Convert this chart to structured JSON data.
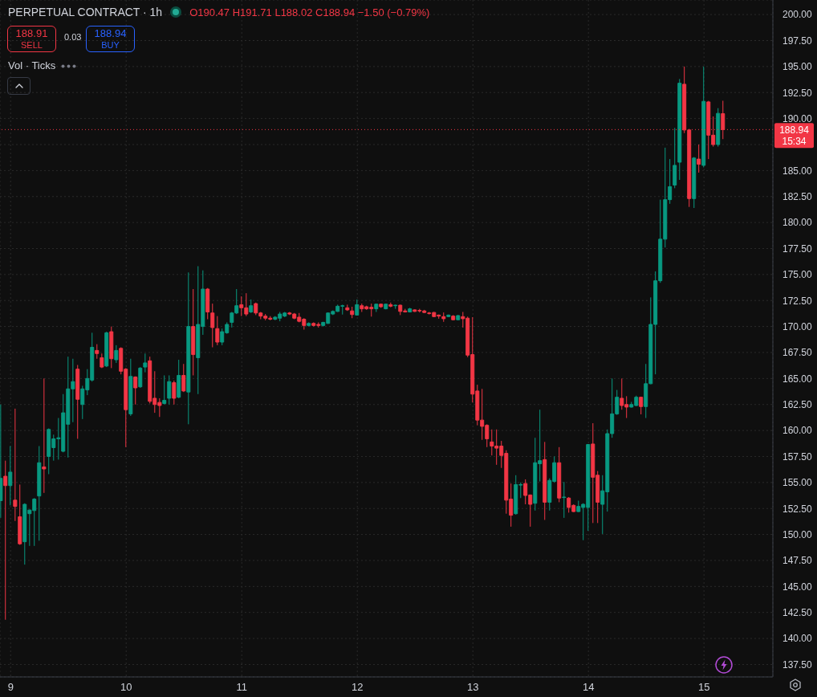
{
  "chart_data": {
    "type": "candlestick",
    "title": "PERPETUAL CONTRACT · 1h",
    "subtitle": "O190.47 H191.71 L188.02 C188.94 −1.50 (−0.79%)",
    "annotations": [
      "188.91",
      "SELL",
      "0.03",
      "188.94",
      "BUY",
      "Vol · Ticks",
      "15:34"
    ],
    "x": [
      8.917,
      8.958,
      9,
      9.042,
      9.083,
      9.125,
      9.167,
      9.208,
      9.25,
      9.292,
      9.333,
      9.375,
      9.417,
      9.458,
      9.5,
      9.542,
      9.583,
      9.625,
      9.667,
      9.708,
      9.75,
      9.792,
      9.833,
      9.875,
      9.917,
      9.958,
      10,
      10.042,
      10.083,
      10.125,
      10.167,
      10.208,
      10.25,
      10.292,
      10.333,
      10.375,
      10.417,
      10.458,
      10.5,
      10.542,
      10.583,
      10.625,
      10.667,
      10.708,
      10.75,
      10.792,
      10.833,
      10.875,
      10.917,
      10.958,
      11,
      11.042,
      11.083,
      11.125,
      11.167,
      11.208,
      11.25,
      11.292,
      11.333,
      11.375,
      11.417,
      11.458,
      11.5,
      11.542,
      11.583,
      11.625,
      11.667,
      11.708,
      11.75,
      11.792,
      11.833,
      11.875,
      11.917,
      11.958,
      12,
      12.042,
      12.083,
      12.125,
      12.167,
      12.208,
      12.25,
      12.292,
      12.333,
      12.375,
      12.417,
      12.458,
      12.5,
      12.542,
      12.583,
      12.625,
      12.667,
      12.708,
      12.75,
      12.792,
      12.833,
      12.875,
      12.917,
      12.958,
      13,
      13.042,
      13.083,
      13.125,
      13.167,
      13.208,
      13.25,
      13.292,
      13.333,
      13.375,
      13.417,
      13.458,
      13.5,
      13.542,
      13.583,
      13.625,
      13.667,
      13.708,
      13.75,
      13.792,
      13.833,
      13.875,
      13.917,
      13.958,
      14,
      14.042,
      14.083,
      14.125,
      14.167,
      14.208,
      14.25,
      14.292,
      14.333,
      14.375,
      14.417,
      14.458,
      14.5,
      14.542,
      14.583,
      14.625,
      14.667,
      14.708,
      14.75,
      14.792,
      14.833,
      14.875,
      14.917,
      14.958,
      15,
      15.042,
      15.083,
      15.125,
      15.167
    ],
    "xlim": [
      8.908,
      15.596
    ],
    "xticks": [
      9,
      10,
      11,
      12,
      13,
      14,
      15
    ],
    "ohlc": [
      [
        153.25,
        162.5,
        151.6,
        155.4
      ],
      [
        155.6,
        157.1,
        141.8,
        154.7
      ],
      [
        154.7,
        158.5,
        152.8,
        156.0
      ],
      [
        153.3,
        162.1,
        151.3,
        152.7
      ],
      [
        151.7,
        154.8,
        149.0,
        149.1
      ],
      [
        149.3,
        153.0,
        147.1,
        152.9
      ],
      [
        152.0,
        152.4,
        148.9,
        152.35
      ],
      [
        152.3,
        153.5,
        148.9,
        153.4
      ],
      [
        153.7,
        158.5,
        149.4,
        156.9
      ],
      [
        156.5,
        165.0,
        154.0,
        156.3
      ],
      [
        157.5,
        160.2,
        155.8,
        160.1
      ],
      [
        158.35,
        159.6,
        157.1,
        159.2
      ],
      [
        159.2,
        161.2,
        157.2,
        159.3
      ],
      [
        158.0,
        163.5,
        157.9,
        161.7
      ],
      [
        160.6,
        167.1,
        157.4,
        164.0
      ],
      [
        164.0,
        166.9,
        160.8,
        164.7
      ],
      [
        165.9,
        166.3,
        159.2,
        163.0
      ],
      [
        162.5,
        164.3,
        161.1,
        164.0
      ],
      [
        163.9,
        165.9,
        163.4,
        165.0
      ],
      [
        164.85,
        169.4,
        164.7,
        168.0
      ],
      [
        167.7,
        168.3,
        166.9,
        167.4
      ],
      [
        167.0,
        167.4,
        166.0,
        166.1
      ],
      [
        166.2,
        169.5,
        166.1,
        169.4
      ],
      [
        169.5,
        170.0,
        166.0,
        166.9
      ],
      [
        166.8,
        168.2,
        166.5,
        167.7
      ],
      [
        167.9,
        168.0,
        165.4,
        165.7
      ],
      [
        165.9,
        166.0,
        158.4,
        162.0
      ],
      [
        161.6,
        166.9,
        161.4,
        165.2
      ],
      [
        165.15,
        165.2,
        162.5,
        164.1
      ],
      [
        164.2,
        166.1,
        164.1,
        166.0
      ],
      [
        166.1,
        167.4,
        165.6,
        166.5
      ],
      [
        166.7,
        167.1,
        162.6,
        162.8
      ],
      [
        163.1,
        165.7,
        161.7,
        162.5
      ],
      [
        162.7,
        163.1,
        161.3,
        162.4
      ],
      [
        162.6,
        165.3,
        162.5,
        162.9
      ],
      [
        163.1,
        165.3,
        162.5,
        164.7
      ],
      [
        164.6,
        164.8,
        162.5,
        163.1
      ],
      [
        163.2,
        166.8,
        163.1,
        165.3
      ],
      [
        165.3,
        166.4,
        163.7,
        163.8
      ],
      [
        163.7,
        175.2,
        160.6,
        170.0
      ],
      [
        170.0,
        173.6,
        165.3,
        167.3
      ],
      [
        167.0,
        175.8,
        163.5,
        170.2
      ],
      [
        170.0,
        175.4,
        169.2,
        173.6
      ],
      [
        173.6,
        173.7,
        170.7,
        171.4
      ],
      [
        171.3,
        172.2,
        168.0,
        169.9
      ],
      [
        169.8,
        171.0,
        168.2,
        168.5
      ],
      [
        168.5,
        169.8,
        168.2,
        169.5
      ],
      [
        169.4,
        170.4,
        169.3,
        170.2
      ],
      [
        170.4,
        171.4,
        169.9,
        171.3
      ],
      [
        171.3,
        173.6,
        171.2,
        172.0
      ],
      [
        172.1,
        172.9,
        171.0,
        171.8
      ],
      [
        171.8,
        173.2,
        171.0,
        171.2
      ],
      [
        171.4,
        172.6,
        171.3,
        172.0
      ],
      [
        172.2,
        172.3,
        171.1,
        171.3
      ],
      [
        171.3,
        171.4,
        170.7,
        171.0
      ],
      [
        171.0,
        171.2,
        170.6,
        170.8
      ],
      [
        170.8,
        171.0,
        170.6,
        170.7
      ],
      [
        170.7,
        171.0,
        170.6,
        170.9
      ],
      [
        170.8,
        171.4,
        170.5,
        171.2
      ],
      [
        171.0,
        171.4,
        170.9,
        171.3
      ],
      [
        171.3,
        171.4,
        171.1,
        171.2
      ],
      [
        171.2,
        171.3,
        170.7,
        170.8
      ],
      [
        170.9,
        171.3,
        170.4,
        170.5
      ],
      [
        170.7,
        170.8,
        169.7,
        170.1
      ],
      [
        170.1,
        170.4,
        170.0,
        170.3
      ],
      [
        170.3,
        170.4,
        170.0,
        170.1
      ],
      [
        170.2,
        170.4,
        169.9,
        170.1
      ],
      [
        170.1,
        170.45,
        170.0,
        170.4
      ],
      [
        170.3,
        171.35,
        170.25,
        171.3
      ],
      [
        171.2,
        171.55,
        171.1,
        171.45
      ],
      [
        171.45,
        172.1,
        171.4,
        171.95
      ],
      [
        171.95,
        172.1,
        171.15,
        172.0
      ],
      [
        171.8,
        172.1,
        171.5,
        171.6
      ],
      [
        171.5,
        171.9,
        170.8,
        171.15
      ],
      [
        171.1,
        172.6,
        171.05,
        172.1
      ],
      [
        172.0,
        172.2,
        171.4,
        171.7
      ],
      [
        171.9,
        172.0,
        171.6,
        171.7
      ],
      [
        171.85,
        172.2,
        170.95,
        171.7
      ],
      [
        171.7,
        172.2,
        171.4,
        172.15
      ],
      [
        172.15,
        172.2,
        171.8,
        171.9
      ],
      [
        171.7,
        172.2,
        171.65,
        172.15
      ],
      [
        172.1,
        172.3,
        171.85,
        171.95
      ],
      [
        172.0,
        172.1,
        171.7,
        172.05
      ],
      [
        172.05,
        172.1,
        171.1,
        171.45
      ],
      [
        171.5,
        171.7,
        171.35,
        171.4
      ],
      [
        171.4,
        171.8,
        171.35,
        171.7
      ],
      [
        171.6,
        171.65,
        171.4,
        171.45
      ],
      [
        171.55,
        171.7,
        171.35,
        171.5
      ],
      [
        171.5,
        171.6,
        171.3,
        171.35
      ],
      [
        171.3,
        171.4,
        171.15,
        171.25
      ],
      [
        171.35,
        171.4,
        170.9,
        170.95
      ],
      [
        171.1,
        171.15,
        170.75,
        171.0
      ],
      [
        170.95,
        171.35,
        170.45,
        170.75
      ],
      [
        170.95,
        171.15,
        170.9,
        171.1
      ],
      [
        171.0,
        171.1,
        170.6,
        170.65
      ],
      [
        170.65,
        171.1,
        170.6,
        171.05
      ],
      [
        170.95,
        171.4,
        169.9,
        170.75
      ],
      [
        170.8,
        170.95,
        167.05,
        167.25
      ],
      [
        167.3,
        170.9,
        162.7,
        163.5
      ],
      [
        163.8,
        164.4,
        160.5,
        161.0
      ],
      [
        161.0,
        164.0,
        159.1,
        160.4
      ],
      [
        160.5,
        160.6,
        158.4,
        159.2
      ],
      [
        158.9,
        160.1,
        157.6,
        158.5
      ],
      [
        158.5,
        160.1,
        156.7,
        158.3
      ],
      [
        158.5,
        159.0,
        156.4,
        157.6
      ],
      [
        157.8,
        158.1,
        152.0,
        153.3
      ],
      [
        153.4,
        154.9,
        150.75,
        151.85
      ],
      [
        152.0,
        155.7,
        151.9,
        154.8
      ],
      [
        154.75,
        155.0,
        153.5,
        154.8
      ],
      [
        154.9,
        155.3,
        152.9,
        153.75
      ],
      [
        153.8,
        153.85,
        150.75,
        152.9
      ],
      [
        153.0,
        159.3,
        152.3,
        156.9
      ],
      [
        156.8,
        162.0,
        155.1,
        157.1
      ],
      [
        157.2,
        158.9,
        151.4,
        153.1
      ],
      [
        153.1,
        155.4,
        152.3,
        155.2
      ],
      [
        155.1,
        157.5,
        155.0,
        156.9
      ],
      [
        156.9,
        158.4,
        153.1,
        153.5
      ],
      [
        153.55,
        155.05,
        151.6,
        153.6
      ],
      [
        153.5,
        153.6,
        152.1,
        152.6
      ],
      [
        152.8,
        152.9,
        152.15,
        152.2
      ],
      [
        152.2,
        153.25,
        152.15,
        152.7
      ],
      [
        152.6,
        153.0,
        149.45,
        152.9
      ],
      [
        152.6,
        158.7,
        150.35,
        158.65
      ],
      [
        158.7,
        160.7,
        151.1,
        155.5
      ],
      [
        155.7,
        156.1,
        151.1,
        153.1
      ],
      [
        152.9,
        155.7,
        150.05,
        154.2
      ],
      [
        154.1,
        160.1,
        152.2,
        159.7
      ],
      [
        159.7,
        165.0,
        159.3,
        161.6
      ],
      [
        161.6,
        163.9,
        161.5,
        163.2
      ],
      [
        163.1,
        165.0,
        162.0,
        162.4
      ],
      [
        162.5,
        163.3,
        161.2,
        162.25
      ],
      [
        162.25,
        162.75,
        162.2,
        162.5
      ],
      [
        162.4,
        163.35,
        162.35,
        163.2
      ],
      [
        163.2,
        163.25,
        161.55,
        162.3
      ],
      [
        162.3,
        166.4,
        161.2,
        164.5
      ],
      [
        164.5,
        172.8,
        164.45,
        170.2
      ],
      [
        170.2,
        175.3,
        165.4,
        174.4
      ],
      [
        174.4,
        182.2,
        174.2,
        178.4
      ],
      [
        178.4,
        187.2,
        177.6,
        182.2
      ],
      [
        182.2,
        186.1,
        181.8,
        183.45
      ],
      [
        183.6,
        189.1,
        183.3,
        185.5
      ],
      [
        185.8,
        193.8,
        184.1,
        193.4
      ],
      [
        193.3,
        195.0,
        188.6,
        188.9
      ],
      [
        188.9,
        189.0,
        181.5,
        182.3
      ],
      [
        182.3,
        186.3,
        181.4,
        186.2
      ],
      [
        186.1,
        187.5,
        184.8,
        185.6
      ],
      [
        185.5,
        195.0,
        185.3,
        191.65
      ],
      [
        191.6,
        191.7,
        186.1,
        188.4
      ],
      [
        188.4,
        190.2,
        187.3,
        187.5
      ],
      [
        187.5,
        191.0,
        187.3,
        190.5
      ],
      [
        190.47,
        191.71,
        188.02,
        188.94
      ]
    ],
    "colors": [
      "#089981",
      "#f23645",
      "#089981",
      "#f23645",
      "#f23645",
      "#089981",
      "#089981",
      "#089981",
      "#089981",
      "#f23645",
      "#089981",
      "#089981",
      "#089981",
      "#089981",
      "#089981",
      "#089981",
      "#f23645",
      "#089981",
      "#089981",
      "#089981",
      "#f23645",
      "#f23645",
      "#089981",
      "#f23645",
      "#089981",
      "#f23645",
      "#f23645",
      "#089981",
      "#f23645",
      "#089981",
      "#089981",
      "#f23645",
      "#f23645",
      "#f23645",
      "#089981",
      "#089981",
      "#f23645",
      "#089981",
      "#f23645",
      "#089981",
      "#f23645",
      "#089981",
      "#089981",
      "#f23645",
      "#f23645",
      "#f23645",
      "#089981",
      "#089981",
      "#089981",
      "#089981",
      "#f23645",
      "#f23645",
      "#089981",
      "#f23645",
      "#f23645",
      "#f23645",
      "#f23645",
      "#089981",
      "#089981",
      "#089981",
      "#f23645",
      "#f23645",
      "#f23645",
      "#f23645",
      "#089981",
      "#f23645",
      "#f23645",
      "#089981",
      "#089981",
      "#089981",
      "#089981",
      "#089981",
      "#f23645",
      "#f23645",
      "#089981",
      "#f23645",
      "#f23645",
      "#f23645",
      "#089981",
      "#f23645",
      "#089981",
      "#f23645",
      "#089981",
      "#f23645",
      "#f23645",
      "#089981",
      "#f23645",
      "#f23645",
      "#f23645",
      "#f23645",
      "#f23645",
      "#f23645",
      "#f23645",
      "#089981",
      "#f23645",
      "#089981",
      "#f23645",
      "#f23645",
      "#f23645",
      "#f23645",
      "#f23645",
      "#f23645",
      "#f23645",
      "#f23645",
      "#f23645",
      "#f23645",
      "#f23645",
      "#089981",
      "#089981",
      "#f23645",
      "#f23645",
      "#089981",
      "#089981",
      "#f23645",
      "#089981",
      "#089981",
      "#f23645",
      "#089981",
      "#f23645",
      "#f23645",
      "#089981",
      "#089981",
      "#089981",
      "#f23645",
      "#f23645",
      "#089981",
      "#089981",
      "#089981",
      "#089981",
      "#f23645",
      "#f23645",
      "#089981",
      "#089981",
      "#f23645",
      "#089981",
      "#089981",
      "#089981",
      "#089981",
      "#089981",
      "#089981",
      "#089981",
      "#089981",
      "#f23645",
      "#f23645",
      "#089981",
      "#f23645",
      "#089981",
      "#f23645",
      "#f23645",
      "#089981",
      "#f23645"
    ],
    "ylim": [
      136.3,
      201.4
    ],
    "yticks": [
      {
        "value": 137.5,
        "label": "137.50"
      },
      {
        "value": 140,
        "label": "140.00"
      },
      {
        "value": 142.5,
        "label": "142.50"
      },
      {
        "value": 145,
        "label": "145.00"
      },
      {
        "value": 147.5,
        "label": "147.50"
      },
      {
        "value": 150,
        "label": "150.00"
      },
      {
        "value": 152.5,
        "label": "152.50"
      },
      {
        "value": 155,
        "label": "155.00"
      },
      {
        "value": 157.5,
        "label": "157.50"
      },
      {
        "value": 160,
        "label": "160.00"
      },
      {
        "value": 162.5,
        "label": "162.50"
      },
      {
        "value": 165,
        "label": "165.00"
      },
      {
        "value": 167.5,
        "label": "167.50"
      },
      {
        "value": 170,
        "label": "170.00"
      },
      {
        "value": 172.5,
        "label": "172.50"
      },
      {
        "value": 175,
        "label": "175.00"
      },
      {
        "value": 177.5,
        "label": "177.50"
      },
      {
        "value": 180,
        "label": "180.00"
      },
      {
        "value": 182.5,
        "label": "182.50"
      },
      {
        "value": 185,
        "label": "185.00"
      },
      {
        "value": 187.5,
        "label": null
      },
      {
        "value": 190,
        "label": "190.00"
      },
      {
        "value": 192.5,
        "label": "192.50"
      },
      {
        "value": 195,
        "label": "195.00"
      },
      {
        "value": 197.5,
        "label": "197.50"
      },
      {
        "value": 200,
        "label": "200.00"
      }
    ],
    "grid": true,
    "ref_lines": [
      {
        "axis": "y",
        "value": 188.94,
        "label": "188.94",
        "color": "#f23645",
        "line_style": "dotted"
      }
    ]
  }
}
